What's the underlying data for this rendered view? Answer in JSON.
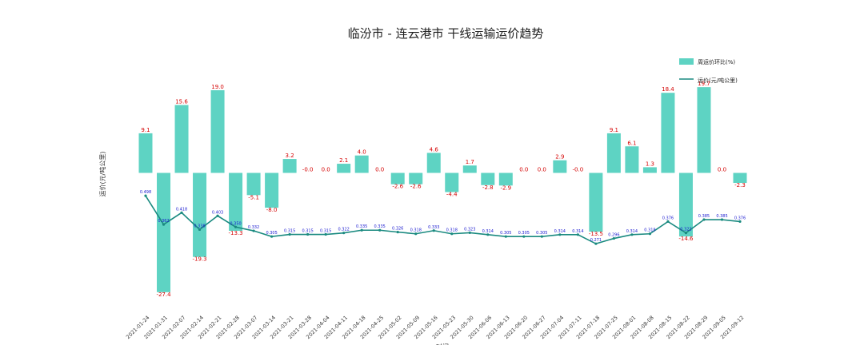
{
  "chart_data": {
    "type": "bar",
    "title": "临汾市 - 连云港市 干线运输运价趋势",
    "xlabel": "时间",
    "ylabel": "运价(元/吨公里)",
    "categories": [
      "2021-01-24",
      "2021-01-31",
      "2021-02-07",
      "2021-02-14",
      "2021-02-21",
      "2021-02-28",
      "2021-03-07",
      "2021-03-14",
      "2021-03-21",
      "2021-03-28",
      "2021-04-04",
      "2021-04-11",
      "2021-04-18",
      "2021-04-25",
      "2021-05-02",
      "2021-05-09",
      "2021-05-16",
      "2021-05-23",
      "2021-05-30",
      "2021-06-06",
      "2021-06-13",
      "2021-06-20",
      "2021-06-27",
      "2021-07-04",
      "2021-07-11",
      "2021-07-18",
      "2021-07-25",
      "2021-08-01",
      "2021-08-08",
      "2021-08-15",
      "2021-08-22",
      "2021-08-29",
      "2021-09-05",
      "2021-09-12"
    ],
    "series": [
      {
        "name": "周运价环比(%)",
        "type": "bar",
        "color": "#5ed3c3",
        "values": [
          9.1,
          -27.4,
          15.6,
          -19.3,
          19.0,
          -13.3,
          -5.1,
          -8.0,
          3.2,
          -0.0,
          0.0,
          2.1,
          4.0,
          0.0,
          -2.6,
          -2.6,
          4.6,
          -4.4,
          1.7,
          -2.8,
          -2.9,
          0.0,
          0.0,
          2.9,
          -0.0,
          -13.5,
          9.1,
          6.1,
          1.3,
          18.4,
          -14.6,
          19.7,
          0.0,
          -2.3
        ],
        "labels": [
          "9.1",
          "-27.4",
          "15.6",
          "-19.3",
          "19.0",
          "-13.3",
          "-5.1",
          "-8.0",
          "3.2",
          "-0.0",
          "0.0",
          "2.1",
          "4.0",
          "0.0",
          "-2.6",
          "-2.6",
          "4.6",
          "-4.4",
          "1.7",
          "-2.8",
          "-2.9",
          "0.0",
          "0.0",
          "2.9",
          "-0.0",
          "-13.5",
          "9.1",
          "6.1",
          "1.3",
          "18.4",
          "-14.6",
          "19.7",
          "0.0",
          "-2.3"
        ]
      },
      {
        "name": "运价(元/吨公里)",
        "type": "line",
        "color": "#1a8a80",
        "values": [
          0.498,
          0.362,
          0.418,
          0.338,
          0.403,
          0.35,
          0.332,
          0.305,
          0.315,
          0.315,
          0.315,
          0.322,
          0.335,
          0.335,
          0.326,
          0.318,
          0.333,
          0.318,
          0.323,
          0.314,
          0.305,
          0.305,
          0.305,
          0.314,
          0.314,
          0.271,
          0.296,
          0.314,
          0.318,
          0.376,
          0.322,
          0.385,
          0.385,
          0.376
        ],
        "labels": [
          "0.498",
          "0.362",
          "0.418",
          "0.338",
          "0.403",
          "0.350",
          "0.332",
          "0.305",
          "0.315",
          "0.315",
          "0.315",
          "0.322",
          "0.335",
          "0.335",
          "0.326",
          "0.318",
          "0.333",
          "0.318",
          "0.323",
          "0.314",
          "0.305",
          "0.305",
          "0.305",
          "0.314",
          "0.314",
          "0.271",
          "0.296",
          "0.314",
          "0.318",
          "0.376",
          "0.322",
          "0.385",
          "0.385",
          "0.376"
        ]
      }
    ],
    "legend": {
      "position": "top-right",
      "entries": [
        "周运价环比(%)",
        "运价(元/吨公里)"
      ]
    },
    "grid": false,
    "bar_ylim": [
      -30,
      22
    ],
    "line_ylim": [
      -0.15,
      1.2
    ]
  }
}
